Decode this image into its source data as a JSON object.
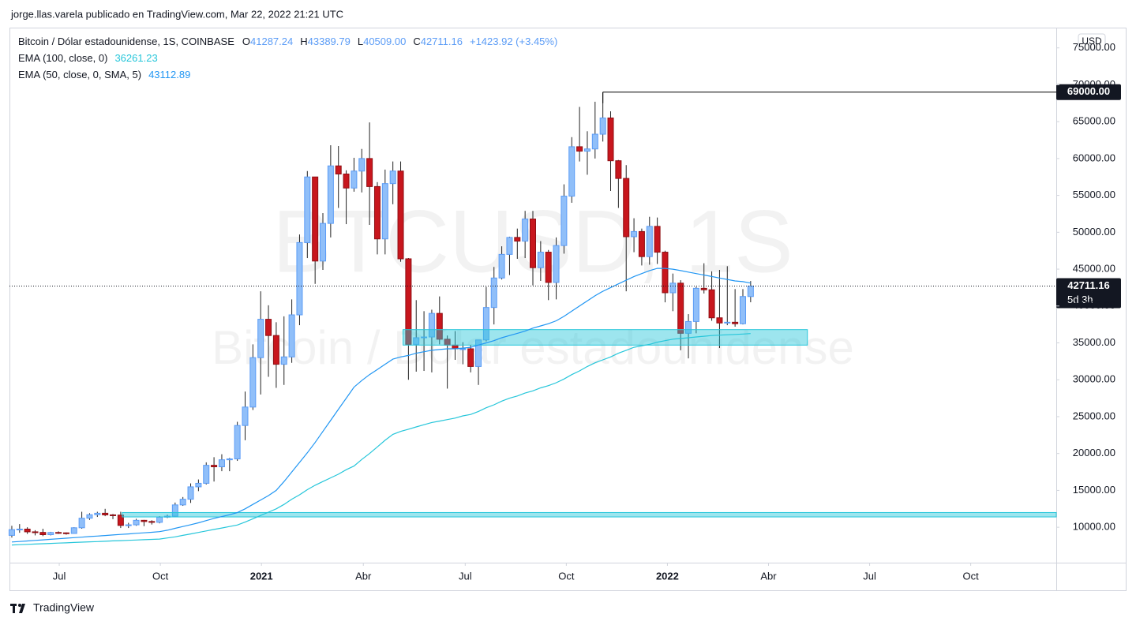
{
  "header": "jorge.llas.varela publicado en TradingView.com, Mar 22, 2022 21:21 UTC",
  "footer": "TradingView",
  "chart_data": {
    "type": "candlestick",
    "watermark": {
      "symbol": "BTCUSD, 1S",
      "description": "Bitcoin / Dólar estadounidense"
    },
    "readout": {
      "symbol": "Bitcoin / Dólar estadounidense, 1S, COINBASE",
      "items": [
        {
          "key": "O",
          "value": "41287.24"
        },
        {
          "key": "H",
          "value": "43389.79"
        },
        {
          "key": "L",
          "value": "40509.00"
        },
        {
          "key": "C",
          "value": "42711.16"
        }
      ],
      "change": "+1423.92 (+3.45%)"
    },
    "currency": "USD",
    "up_color": "#90bff9",
    "up_border": "#5b9cf6",
    "down_color": "#c8161d",
    "down_border": "#8f0f14",
    "wick_color": "#222222",
    "open": [
      8900,
      9680,
      9750,
      9380,
      9300,
      9000,
      9290,
      9240,
      9160,
      9930,
      11230,
      11700,
      11900,
      11680,
      11650,
      10250,
      10330,
      10940,
      10780,
      10670,
      11370,
      11500,
      13030,
      13800,
      15480,
      15960,
      18400,
      18200,
      19150,
      19270,
      23800,
      26300,
      33000,
      38200,
      36000,
      32100,
      33100,
      38800,
      48600,
      57500,
      46100,
      51200,
      59000,
      57900,
      56000,
      58300,
      60000,
      56200,
      49100,
      56600,
      58300,
      46400,
      34800,
      35700,
      35800,
      39000,
      35500,
      34700,
      34200,
      34200,
      31800,
      35400,
      39800,
      43800,
      47000,
      49300,
      48800,
      51800,
      45200,
      47300,
      43200,
      48200,
      54900,
      61600,
      61000,
      61300,
      63300,
      65500,
      59700,
      57300,
      49400,
      50100,
      46700,
      50800,
      47300,
      41800,
      43100,
      36300,
      37900,
      42400,
      42200,
      38400,
      37700,
      37800,
      37600,
      41287.24
    ],
    "high": [
      10200,
      10430,
      10000,
      9600,
      9800,
      9380,
      9440,
      9290,
      10000,
      12100,
      11900,
      12100,
      12500,
      11800,
      12100,
      10600,
      11150,
      11000,
      10950,
      11500,
      11700,
      13350,
      14100,
      15950,
      16480,
      18800,
      19500,
      19900,
      19400,
      24300,
      28400,
      34800,
      42000,
      40100,
      37800,
      38600,
      40900,
      49700,
      58300,
      57500,
      52600,
      61800,
      61700,
      58400,
      60100,
      61300,
      64900,
      56800,
      58500,
      59600,
      59600,
      46500,
      40800,
      39300,
      39500,
      41300,
      36000,
      36600,
      35100,
      34700,
      35400,
      42600,
      45300,
      48100,
      49400,
      50500,
      52900,
      52900,
      48800,
      47600,
      49300,
      56500,
      62900,
      67000,
      63700,
      67700,
      69000,
      66400,
      59800,
      59100,
      51900,
      50500,
      52100,
      52000,
      47500,
      44400,
      43500,
      38900,
      42600,
      45800,
      44700,
      44900,
      45400,
      42300,
      42300,
      43389.79
    ],
    "low": [
      8600,
      9250,
      9100,
      8900,
      8800,
      8900,
      9100,
      9000,
      9120,
      9800,
      11000,
      11400,
      11500,
      11100,
      9900,
      9900,
      10200,
      10150,
      10370,
      10530,
      11250,
      11400,
      12900,
      13300,
      14900,
      15800,
      16200,
      17600,
      17600,
      19000,
      21800,
      25900,
      28000,
      30400,
      28900,
      29300,
      32300,
      37400,
      46500,
      43000,
      44900,
      49300,
      53300,
      51100,
      55500,
      55400,
      51000,
      47000,
      47000,
      53800,
      46000,
      30000,
      31100,
      31200,
      31000,
      34800,
      28800,
      32700,
      32100,
      31000,
      29300,
      35200,
      37500,
      43600,
      44200,
      46400,
      46500,
      42800,
      43400,
      40800,
      40900,
      47100,
      54000,
      59600,
      57800,
      60000,
      62300,
      55600,
      53300,
      42000,
      47300,
      45500,
      45600,
      45700,
      40500,
      39300,
      34000,
      32900,
      36300,
      41700,
      38000,
      34300,
      37400,
      37200,
      37500,
      40509
    ],
    "close": [
      9680,
      9750,
      9380,
      9300,
      9000,
      9290,
      9240,
      9160,
      9930,
      11230,
      11700,
      11900,
      11680,
      11650,
      10250,
      10330,
      10940,
      10780,
      10670,
      11370,
      11500,
      13030,
      13800,
      15480,
      15960,
      18400,
      18200,
      19150,
      19270,
      23800,
      26300,
      33000,
      38200,
      36000,
      32100,
      33100,
      38800,
      48600,
      57500,
      46100,
      51200,
      59000,
      57900,
      56000,
      58300,
      60000,
      56200,
      49100,
      56600,
      58300,
      46400,
      34800,
      35700,
      35800,
      39000,
      35500,
      34700,
      34200,
      34200,
      31800,
      35400,
      39800,
      43800,
      47000,
      49300,
      48800,
      51800,
      45200,
      47300,
      43200,
      48200,
      54900,
      61600,
      61000,
      61300,
      63300,
      65500,
      59700,
      57300,
      49400,
      50100,
      46700,
      50800,
      47300,
      41800,
      43100,
      36300,
      37900,
      42400,
      42200,
      38400,
      37700,
      37800,
      37600,
      41290,
      42711.16
    ],
    "series": [
      {
        "name": "EMA (100, close, 0)",
        "color": "#26c6da",
        "values": [
          7600,
          7640,
          7680,
          7730,
          7770,
          7810,
          7850,
          7890,
          7940,
          7980,
          8020,
          8060,
          8100,
          8150,
          8190,
          8230,
          8270,
          8310,
          8360,
          8400,
          8550,
          8700,
          8900,
          9100,
          9300,
          9500,
          9700,
          9900,
          10100,
          10300,
          10700,
          11150,
          11600,
          12050,
          12500,
          13100,
          13800,
          14400,
          15100,
          15700,
          16200,
          16700,
          17200,
          17800,
          18300,
          19200,
          20000,
          20900,
          21800,
          22600,
          23000,
          23300,
          23600,
          23900,
          24200,
          24400,
          24600,
          24800,
          25100,
          25300,
          25700,
          26200,
          26600,
          27100,
          27500,
          27800,
          28200,
          28500,
          28900,
          29200,
          29600,
          30100,
          30700,
          31200,
          31800,
          32300,
          32700,
          33100,
          33600,
          34000,
          34400,
          34600,
          34800,
          35100,
          35300,
          35500,
          35600,
          35700,
          35800,
          35900,
          36000,
          36050,
          36100,
          36150,
          36200,
          36261.23
        ]
      },
      {
        "name": "EMA (50, close, 0, SMA, 5)",
        "color": "#2196f3",
        "values": [
          8000,
          8070,
          8140,
          8220,
          8290,
          8370,
          8440,
          8520,
          8590,
          8660,
          8740,
          8810,
          8880,
          8960,
          9030,
          9100,
          9180,
          9250,
          9320,
          9400,
          9600,
          9850,
          10100,
          10350,
          10600,
          10900,
          11200,
          11450,
          11700,
          12000,
          12500,
          13100,
          13700,
          14300,
          15000,
          16200,
          17500,
          18800,
          20100,
          21500,
          23000,
          24500,
          26000,
          27500,
          29000,
          29900,
          30700,
          31400,
          32100,
          32800,
          33100,
          33300,
          33600,
          33800,
          34000,
          34100,
          34200,
          34200,
          34300,
          34400,
          34700,
          35000,
          35300,
          35700,
          36000,
          36300,
          36600,
          37000,
          37300,
          37600,
          38000,
          38600,
          39300,
          40000,
          40700,
          41400,
          42000,
          42500,
          43000,
          43500,
          44000,
          44400,
          44800,
          45100,
          45100,
          45000,
          44800,
          44600,
          44400,
          44200,
          44000,
          43800,
          43600,
          43400,
          43300,
          43112.89
        ]
      }
    ],
    "zones": [
      {
        "x": [
          50.3,
          102.3
        ],
        "y": [
          34700,
          36800
        ]
      },
      {
        "x": [
          14.2,
          134.3
        ],
        "y": [
          11400,
          12000
        ]
      }
    ],
    "zone_color": "#26c6da",
    "price_line": {
      "value": 42711.16,
      "label": "42711.16",
      "countdown": "5d 3h"
    },
    "high_line": {
      "value": 69000,
      "label": "69000.00",
      "x": 76
    },
    "xlim": [
      -0.3,
      134.3
    ],
    "xticks": [
      {
        "value": 6.1,
        "label": "Jul"
      },
      {
        "value": 19.1,
        "label": "Oct"
      },
      {
        "value": 32.1,
        "label": "2021"
      },
      {
        "value": 45.2,
        "label": "Abr"
      },
      {
        "value": 58.3,
        "label": "Jul"
      },
      {
        "value": 71.3,
        "label": "Oct"
      },
      {
        "value": 84.3,
        "label": "2022"
      },
      {
        "value": 97.3,
        "label": "Abr"
      },
      {
        "value": 110.3,
        "label": "Jul"
      },
      {
        "value": 123.3,
        "label": "Oct"
      }
    ],
    "ylim": [
      5200,
      77750
    ],
    "yticks": [
      {
        "value": 10000,
        "label": "10000.00"
      },
      {
        "value": 15000,
        "label": "15000.00"
      },
      {
        "value": 20000,
        "label": "20000.00"
      },
      {
        "value": 25000,
        "label": "25000.00"
      },
      {
        "value": 30000,
        "label": "30000.00"
      },
      {
        "value": 35000,
        "label": "35000.00"
      },
      {
        "value": 40000,
        "label": "40000.00"
      },
      {
        "value": 45000,
        "label": "45000.00"
      },
      {
        "value": 50000,
        "label": "50000.00"
      },
      {
        "value": 55000,
        "label": "55000.00"
      },
      {
        "value": 60000,
        "label": "60000.00"
      },
      {
        "value": 65000,
        "label": "65000.00"
      },
      {
        "value": 70000,
        "label": "70000.00"
      },
      {
        "value": 75000,
        "label": "75000.00"
      }
    ]
  }
}
